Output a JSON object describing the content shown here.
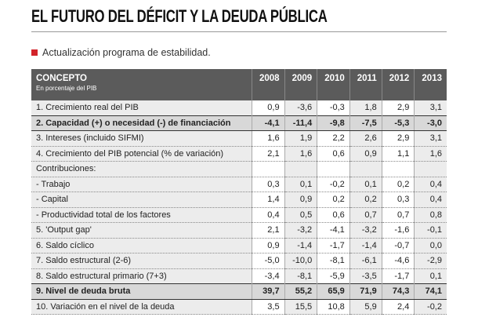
{
  "header": {
    "title": "EL FUTURO DEL DÉFICIT Y LA DEUDA PÚBLICA",
    "subtitle": "Actualización programa de estabilidad."
  },
  "table": {
    "concept_header": "CONCEPTO",
    "concept_subheader": "En porcentaje del PIB",
    "years": [
      "2008",
      "2009",
      "2010",
      "2011",
      "2012",
      "2013"
    ],
    "rows": [
      {
        "label": "1. Crecimiento real del PIB",
        "values": [
          "0,9",
          "-3,6",
          "-0,3",
          "1,8",
          "2,9",
          "3,1"
        ]
      },
      {
        "label": "2. Capacidad (+) o necesidad (-) de financiación",
        "values": [
          "-4,1",
          "-11,4",
          "-9,8",
          "-7,5",
          "-5,3",
          "-3,0"
        ]
      },
      {
        "label": "3. Intereses (incluido SIFMI)",
        "values": [
          "1,6",
          "1,9",
          "2,2",
          "2,6",
          "2,9",
          "3,1"
        ]
      },
      {
        "label": "4. Crecimiento del PIB potencial (% de variación)",
        "values": [
          "2,1",
          "1,6",
          "0,6",
          "0,9",
          "1,1",
          "1,6"
        ]
      },
      {
        "label": "Contribuciones:"
      },
      {
        "label": "- Trabajo",
        "values": [
          "0,3",
          "0,1",
          "-0,2",
          "0,1",
          "0,2",
          "0,4"
        ]
      },
      {
        "label": "- Capital",
        "values": [
          "1,4",
          "0,9",
          "0,2",
          "0,2",
          "0,3",
          "0,4"
        ]
      },
      {
        "label": "- Productividad total de los factores",
        "values": [
          "0,4",
          "0,5",
          "0,6",
          "0,7",
          "0,7",
          "0,8"
        ]
      },
      {
        "label": "5. 'Output gap'",
        "values": [
          "2,1",
          "-3,2",
          "-4,1",
          "-3,2",
          "-1,6",
          "-0,1"
        ]
      },
      {
        "label": "6. Saldo cíclico",
        "values": [
          "0,9",
          "-1,4",
          "-1,7",
          "-1,4",
          "-0,7",
          "0,0"
        ]
      },
      {
        "label": "7. Saldo estructural (2-6)",
        "values": [
          "-5,0",
          "-10,0",
          "-8,1",
          "-6,1",
          "-4,6",
          "-2,9"
        ]
      },
      {
        "label": "8. Saldo estructural primario (7+3)",
        "values": [
          "-3,4",
          "-8,1",
          "-5,9",
          "-3,5",
          "-1,7",
          "0,1"
        ]
      },
      {
        "label": "9. Nivel de deuda bruta",
        "values": [
          "39,7",
          "55,2",
          "65,9",
          "71,9",
          "74,3",
          "74,1"
        ]
      },
      {
        "label": "10. Variación en el nivel de la deuda",
        "values": [
          "3,5",
          "15,5",
          "10,8",
          "5,9",
          "2,4",
          "-0,2"
        ]
      }
    ]
  }
}
